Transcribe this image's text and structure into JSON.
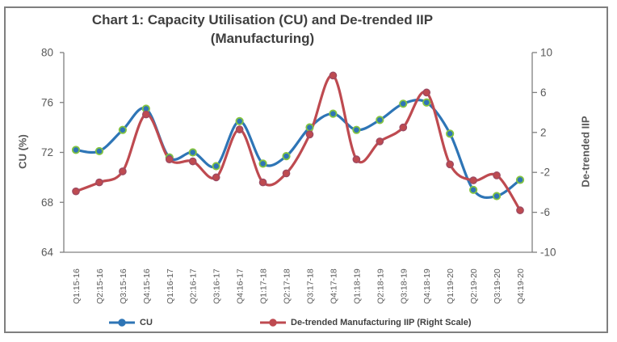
{
  "chart": {
    "title_line1": "Chart 1: Capacity Utilisation (CU) and De-trended IIP",
    "title_line2": "(Manufacturing)"
  },
  "colors": {
    "frame_border": "#7F7F7F",
    "axis_line": "#808080",
    "tick_text": "#595959",
    "title_text": "#3F3F3F",
    "legend_text": "#404040",
    "background": "#FFFFFF",
    "cu_blue": "#2E75B6",
    "cu_marker_edge_green": "#84C441",
    "iip_red": "#BE4A50",
    "iip_marker_edge": "#9C4A62"
  },
  "chart_data": {
    "type": "line",
    "smooth": true,
    "grid": false,
    "legend_position": "bottom",
    "title": "Chart 1: Capacity Utilisation (CU) and De-trended IIP (Manufacturing)",
    "categories": [
      "Q1:15-16",
      "Q2:15-16",
      "Q3:15-16",
      "Q4:15-16",
      "Q1:16-17",
      "Q2:16-17",
      "Q3:16-17",
      "Q4:16-17",
      "Q1:17-18",
      "Q2:17-18",
      "Q3:17-18",
      "Q4:17-18",
      "Q1:18-19",
      "Q2:18-19",
      "Q3:18-19",
      "Q4:18-19",
      "Q1:19-20",
      "Q2:19-20",
      "Q3:19-20",
      "Q4:19-20"
    ],
    "series": [
      {
        "name": "CU",
        "axis": "left",
        "line_color": "#2E75B6",
        "marker_fill": "#2E75B6",
        "marker_edge": "#84C441",
        "values": [
          72.2,
          72.1,
          73.8,
          75.5,
          71.6,
          72.0,
          70.9,
          74.5,
          71.1,
          71.7,
          74.0,
          75.1,
          73.8,
          74.6,
          75.9,
          76.0,
          73.5,
          69.0,
          68.5,
          69.8
        ]
      },
      {
        "name": "De-trended Manufacturing IIP (Right Scale)",
        "axis": "right",
        "line_color": "#BE4A50",
        "marker_fill": "#BE4A50",
        "marker_edge": "#9C4A62",
        "values": [
          -3.9,
          -3.0,
          -1.9,
          3.8,
          -0.7,
          -0.9,
          -2.5,
          2.3,
          -3.0,
          -2.1,
          1.8,
          7.7,
          -0.7,
          1.1,
          2.5,
          6.0,
          -1.2,
          -2.8,
          -2.3,
          -5.8
        ]
      }
    ],
    "left_axis": {
      "label": "CU (%)",
      "min": 64,
      "max": 80,
      "ticks": [
        80,
        76,
        72,
        68,
        64
      ]
    },
    "right_axis": {
      "label": "De-trended IIP",
      "min": -10,
      "max": 10,
      "ticks": [
        10,
        6,
        2,
        -2,
        -6,
        -10
      ]
    }
  }
}
